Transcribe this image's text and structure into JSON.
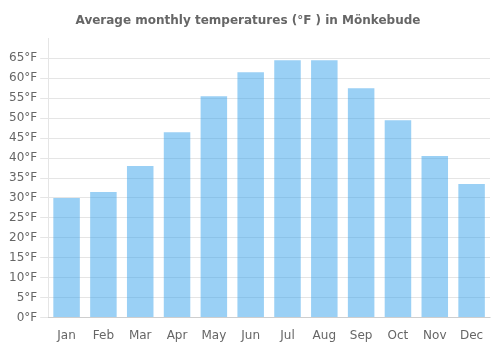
{
  "chart_data": {
    "type": "bar",
    "title": "Average monthly temperatures (°F ) in Mönkebude",
    "categories": [
      "Jan",
      "Feb",
      "Mar",
      "Apr",
      "May",
      "Jun",
      "Jul",
      "Aug",
      "Sep",
      "Oct",
      "Nov",
      "Dec"
    ],
    "values": [
      30,
      31.5,
      38,
      46.5,
      55.5,
      61.5,
      64.5,
      64.5,
      57.5,
      49.5,
      40.5,
      33.5
    ],
    "ylim": [
      0,
      70
    ],
    "yticks": [
      {
        "value": 0,
        "label": "0°F"
      },
      {
        "value": 5,
        "label": "5°F"
      },
      {
        "value": 10,
        "label": "10°F"
      },
      {
        "value": 15,
        "label": "15°F"
      },
      {
        "value": 20,
        "label": "20°F"
      },
      {
        "value": 25,
        "label": "25°F"
      },
      {
        "value": 30,
        "label": "30°F"
      },
      {
        "value": 35,
        "label": "35°F"
      },
      {
        "value": 40,
        "label": "40°F"
      },
      {
        "value": 45,
        "label": "45°F"
      },
      {
        "value": 50,
        "label": "50°F"
      },
      {
        "value": 55,
        "label": "55°F"
      },
      {
        "value": 60,
        "label": "60°F"
      },
      {
        "value": 65,
        "label": "65°F"
      }
    ],
    "grid": true
  }
}
